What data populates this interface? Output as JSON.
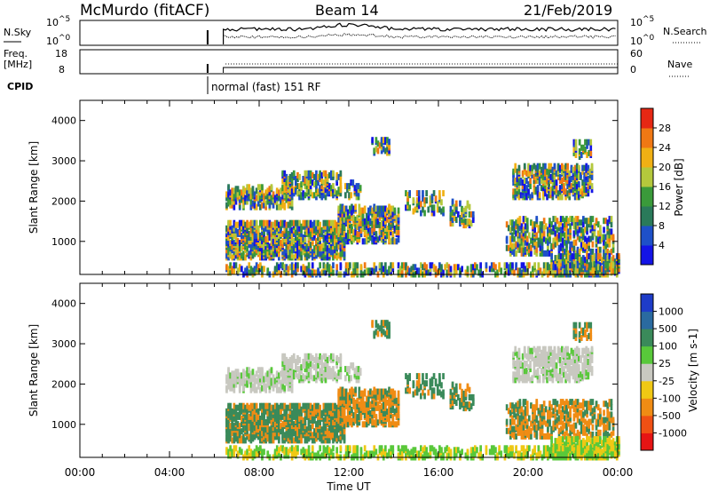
{
  "header": {
    "station": "McMurdo (fitACF)",
    "beam": "Beam 14",
    "date": "21/Feb/2019"
  },
  "sky_panel": {
    "left_label": "N.Sky",
    "right_label": "N.Search",
    "left_ticks": [
      {
        "base": "10",
        "exp": "^5"
      },
      {
        "base": "10",
        "exp": "^0"
      }
    ],
    "right_ticks": [
      {
        "base": "10",
        "exp": "^5"
      },
      {
        "base": "10",
        "exp": "^0"
      }
    ]
  },
  "freq_panel": {
    "left_label_1": "Freq.",
    "left_label_2": "[MHz]",
    "left_ticks": [
      "18",
      "8"
    ],
    "right_label": "Nave",
    "right_ticks": [
      "60",
      "0"
    ]
  },
  "cpid": {
    "label": "CPID",
    "mode_text": "normal (fast) 151 RF"
  },
  "chart_data": [
    {
      "type": "heatmap",
      "panel": "power",
      "ylabel": "Slant Range [km]",
      "ylim": [
        180,
        4500
      ],
      "yticks": [
        "1000",
        "2000",
        "3000",
        "4000"
      ],
      "xlabel": "",
      "xlim": [
        "00:00",
        "24:00"
      ],
      "colorbar": {
        "label": "Power [dB]",
        "ticks": [
          "4",
          "8",
          "12",
          "16",
          "20",
          "24",
          "28"
        ],
        "range": [
          0,
          30
        ],
        "colors": [
          "#1414e6",
          "#1e50c8",
          "#2a7a5a",
          "#3a9a3a",
          "#b4c83c",
          "#f0b014",
          "#f07814",
          "#e62814"
        ]
      }
    },
    {
      "type": "heatmap",
      "panel": "velocity",
      "ylabel": "Slant Range [km]",
      "ylim": [
        180,
        4500
      ],
      "yticks": [
        "1000",
        "2000",
        "3000",
        "4000"
      ],
      "xlabel": "Time UT",
      "xticks": [
        "00:00",
        "04:00",
        "08:00",
        "12:00",
        "16:00",
        "20:00",
        "00:00"
      ],
      "colorbar": {
        "label": "Velocity [m s-1]",
        "ticks": [
          "1000",
          "500",
          "100",
          "25",
          "-25",
          "-100",
          "-500",
          "-1000"
        ],
        "colors": [
          "#1e3cc8",
          "#2a6aa0",
          "#3a8a5a",
          "#58c83a",
          "#c8c8c0",
          "#f0c814",
          "#f08c14",
          "#f05014",
          "#e61414"
        ]
      }
    }
  ]
}
